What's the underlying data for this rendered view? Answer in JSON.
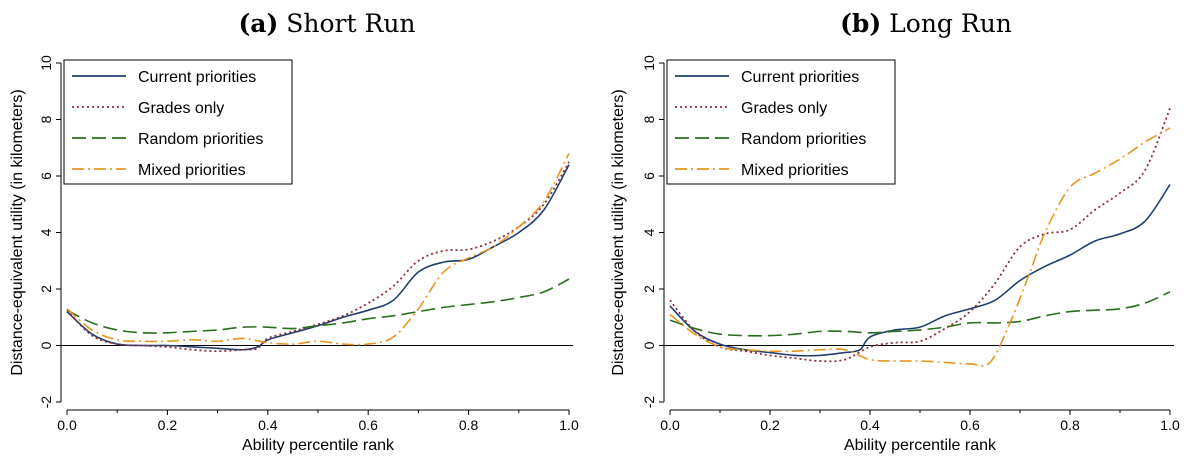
{
  "chart_data": [
    {
      "type": "line",
      "panel_label": "(a)",
      "title": "Short Run",
      "xlabel": "Ability percentile rank",
      "ylabel": "Distance-equivalent utility (in kilometers)",
      "xlim": [
        0,
        1
      ],
      "ylim": [
        -2,
        10
      ],
      "xticks": [
        "0.0",
        "0.2",
        "0.4",
        "0.6",
        "0.8",
        "1.0"
      ],
      "yticks": [
        "-2",
        "0",
        "2",
        "4",
        "6",
        "8",
        "10"
      ],
      "grid": false,
      "legend_position": "top-left",
      "series": [
        {
          "name": "Current priorities",
          "color": "#1f3f6e",
          "dash": "solid",
          "x": [
            0.0,
            0.05,
            0.1,
            0.15,
            0.2,
            0.25,
            0.3,
            0.35,
            0.38,
            0.4,
            0.45,
            0.5,
            0.55,
            0.6,
            0.65,
            0.7,
            0.75,
            0.8,
            0.85,
            0.9,
            0.95,
            1.0
          ],
          "y": [
            1.2,
            0.4,
            0.05,
            0.0,
            0.0,
            -0.05,
            -0.1,
            -0.15,
            -0.05,
            0.2,
            0.45,
            0.7,
            1.0,
            1.25,
            1.6,
            2.6,
            2.95,
            3.05,
            3.5,
            4.0,
            4.8,
            6.4
          ]
        },
        {
          "name": "Grades only",
          "color": "#8c2d3a",
          "dash": "dot",
          "x": [
            0.0,
            0.05,
            0.1,
            0.15,
            0.2,
            0.25,
            0.3,
            0.35,
            0.38,
            0.4,
            0.45,
            0.5,
            0.55,
            0.6,
            0.65,
            0.7,
            0.75,
            0.8,
            0.85,
            0.9,
            0.95,
            1.0
          ],
          "y": [
            1.25,
            0.35,
            0.05,
            0.0,
            -0.05,
            -0.15,
            -0.2,
            -0.15,
            -0.1,
            0.25,
            0.5,
            0.75,
            1.05,
            1.5,
            2.1,
            3.0,
            3.35,
            3.4,
            3.7,
            4.2,
            5.0,
            6.5
          ]
        },
        {
          "name": "Random priorities",
          "color": "#2a6e1f",
          "dash": "longdash",
          "x": [
            0.0,
            0.05,
            0.1,
            0.15,
            0.2,
            0.25,
            0.3,
            0.35,
            0.4,
            0.45,
            0.5,
            0.55,
            0.6,
            0.65,
            0.7,
            0.75,
            0.8,
            0.85,
            0.9,
            0.95,
            1.0
          ],
          "y": [
            1.25,
            0.8,
            0.55,
            0.45,
            0.45,
            0.5,
            0.55,
            0.65,
            0.65,
            0.6,
            0.7,
            0.8,
            0.95,
            1.05,
            1.2,
            1.35,
            1.45,
            1.55,
            1.7,
            1.9,
            2.35
          ]
        },
        {
          "name": "Mixed priorities",
          "color": "#e8951f",
          "dash": "dashdot",
          "x": [
            0.0,
            0.05,
            0.1,
            0.15,
            0.2,
            0.25,
            0.3,
            0.35,
            0.4,
            0.45,
            0.5,
            0.55,
            0.6,
            0.65,
            0.7,
            0.75,
            0.8,
            0.85,
            0.9,
            0.95,
            1.0
          ],
          "y": [
            1.3,
            0.55,
            0.2,
            0.15,
            0.15,
            0.2,
            0.15,
            0.25,
            0.1,
            0.05,
            0.15,
            0.05,
            0.05,
            0.3,
            1.3,
            2.6,
            3.1,
            3.5,
            4.2,
            5.1,
            6.8
          ]
        }
      ]
    },
    {
      "type": "line",
      "panel_label": "(b)",
      "title": "Long Run",
      "xlabel": "Ability percentile rank",
      "ylabel": "Distance-equivalent utility (in kilometers)",
      "xlim": [
        0,
        1
      ],
      "ylim": [
        -2,
        10
      ],
      "xticks": [
        "0.0",
        "0.2",
        "0.4",
        "0.6",
        "0.8",
        "1.0"
      ],
      "yticks": [
        "-2",
        "0",
        "2",
        "4",
        "6",
        "8",
        "10"
      ],
      "grid": false,
      "legend_position": "top-left",
      "series": [
        {
          "name": "Current priorities",
          "color": "#1f3f6e",
          "dash": "solid",
          "x": [
            0.0,
            0.05,
            0.1,
            0.15,
            0.2,
            0.25,
            0.3,
            0.35,
            0.38,
            0.4,
            0.45,
            0.5,
            0.55,
            0.6,
            0.65,
            0.7,
            0.75,
            0.8,
            0.85,
            0.9,
            0.95,
            1.0
          ],
          "y": [
            1.4,
            0.5,
            0.05,
            -0.15,
            -0.25,
            -0.35,
            -0.35,
            -0.25,
            -0.15,
            0.3,
            0.55,
            0.65,
            1.05,
            1.3,
            1.6,
            2.3,
            2.8,
            3.2,
            3.7,
            3.95,
            4.4,
            5.7
          ]
        },
        {
          "name": "Grades only",
          "color": "#8c2d3a",
          "dash": "dot",
          "x": [
            0.0,
            0.05,
            0.1,
            0.15,
            0.2,
            0.25,
            0.3,
            0.35,
            0.4,
            0.45,
            0.5,
            0.55,
            0.6,
            0.65,
            0.7,
            0.75,
            0.8,
            0.85,
            0.9,
            0.95,
            1.0
          ],
          "y": [
            1.6,
            0.5,
            -0.05,
            -0.2,
            -0.35,
            -0.45,
            -0.55,
            -0.5,
            -0.05,
            0.1,
            0.15,
            0.6,
            1.2,
            2.2,
            3.5,
            3.95,
            4.1,
            4.8,
            5.4,
            6.2,
            8.4
          ]
        },
        {
          "name": "Random priorities",
          "color": "#2a6e1f",
          "dash": "longdash",
          "x": [
            0.0,
            0.05,
            0.1,
            0.15,
            0.2,
            0.25,
            0.3,
            0.35,
            0.4,
            0.45,
            0.5,
            0.55,
            0.6,
            0.65,
            0.7,
            0.75,
            0.8,
            0.85,
            0.9,
            0.95,
            1.0
          ],
          "y": [
            0.9,
            0.6,
            0.4,
            0.35,
            0.35,
            0.4,
            0.5,
            0.5,
            0.45,
            0.5,
            0.55,
            0.65,
            0.8,
            0.8,
            0.85,
            1.05,
            1.2,
            1.25,
            1.3,
            1.5,
            1.9
          ]
        },
        {
          "name": "Mixed priorities",
          "color": "#e8951f",
          "dash": "dashdot",
          "x": [
            0.0,
            0.05,
            0.1,
            0.15,
            0.2,
            0.25,
            0.3,
            0.35,
            0.4,
            0.45,
            0.5,
            0.55,
            0.6,
            0.64,
            0.68,
            0.72,
            0.75,
            0.8,
            0.85,
            0.9,
            0.95,
            1.0
          ],
          "y": [
            1.1,
            0.4,
            -0.05,
            -0.15,
            -0.2,
            -0.2,
            -0.15,
            -0.15,
            -0.5,
            -0.55,
            -0.55,
            -0.6,
            -0.65,
            -0.6,
            0.8,
            2.6,
            4.0,
            5.6,
            6.1,
            6.6,
            7.2,
            7.7
          ]
        }
      ]
    }
  ]
}
